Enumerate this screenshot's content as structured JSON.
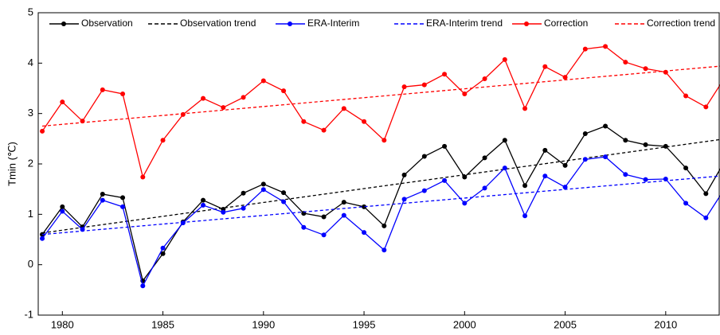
{
  "chart_data": {
    "type": "line",
    "ylabel": "Tmin (℃)",
    "x": [
      1979,
      1980,
      1981,
      1982,
      1983,
      1984,
      1985,
      1986,
      1987,
      1988,
      1989,
      1990,
      1991,
      1992,
      1993,
      1994,
      1995,
      1996,
      1997,
      1998,
      1999,
      2000,
      2001,
      2002,
      2003,
      2004,
      2005,
      2006,
      2007,
      2008,
      2009,
      2010,
      2011,
      2012,
      2013
    ],
    "series": [
      {
        "name": "Observation",
        "color": "#000000",
        "linestyle": "solid",
        "marker": true,
        "values": [
          0.6,
          1.15,
          0.75,
          1.4,
          1.33,
          -0.32,
          0.22,
          0.85,
          1.28,
          1.1,
          1.42,
          1.6,
          1.43,
          1.02,
          0.95,
          1.24,
          1.15,
          0.77,
          1.78,
          2.15,
          2.35,
          1.74,
          2.12,
          2.47,
          1.57,
          2.27,
          1.97,
          2.6,
          2.75,
          2.47,
          2.38,
          2.35,
          1.92,
          1.41,
          2.1
        ]
      },
      {
        "name": "Observation trend",
        "color": "#000000",
        "linestyle": "dashed",
        "marker": false,
        "x": [
          1979,
          2013
        ],
        "values": [
          0.63,
          2.5
        ]
      },
      {
        "name": "ERA-Interim",
        "color": "#0000ff",
        "linestyle": "solid",
        "marker": true,
        "values": [
          0.52,
          1.06,
          0.7,
          1.28,
          1.15,
          -0.42,
          0.33,
          0.83,
          1.18,
          1.04,
          1.12,
          1.49,
          1.25,
          0.74,
          0.59,
          0.98,
          0.64,
          0.29,
          1.3,
          1.47,
          1.67,
          1.22,
          1.52,
          1.92,
          0.97,
          1.76,
          1.54,
          2.09,
          2.14,
          1.79,
          1.69,
          1.7,
          1.22,
          0.93,
          1.55
        ]
      },
      {
        "name": "ERA-Interim trend",
        "color": "#0000ff",
        "linestyle": "dashed",
        "marker": false,
        "x": [
          1979,
          2013
        ],
        "values": [
          0.6,
          1.77
        ]
      },
      {
        "name": "Correction",
        "color": "#ff0000",
        "linestyle": "solid",
        "marker": true,
        "values": [
          2.65,
          3.23,
          2.85,
          3.47,
          3.39,
          1.74,
          2.47,
          2.98,
          3.3,
          3.12,
          3.32,
          3.65,
          3.45,
          2.84,
          2.67,
          3.1,
          2.84,
          2.47,
          3.53,
          3.57,
          3.78,
          3.39,
          3.69,
          4.07,
          3.1,
          3.93,
          3.72,
          4.28,
          4.33,
          4.02,
          3.89,
          3.82,
          3.35,
          3.13,
          3.75
        ]
      },
      {
        "name": "Correction trend",
        "color": "#ff0000",
        "linestyle": "dashed",
        "marker": false,
        "x": [
          1979,
          2013
        ],
        "values": [
          2.75,
          3.95
        ]
      }
    ],
    "xlim": [
      1978.8,
      2012.7
    ],
    "xticks": [
      1980,
      1985,
      1990,
      1995,
      2000,
      2005,
      2010
    ],
    "ylim": [
      -1,
      5
    ],
    "yticks": [
      -1,
      0,
      1,
      2,
      3,
      4,
      5
    ],
    "legend": "top"
  }
}
